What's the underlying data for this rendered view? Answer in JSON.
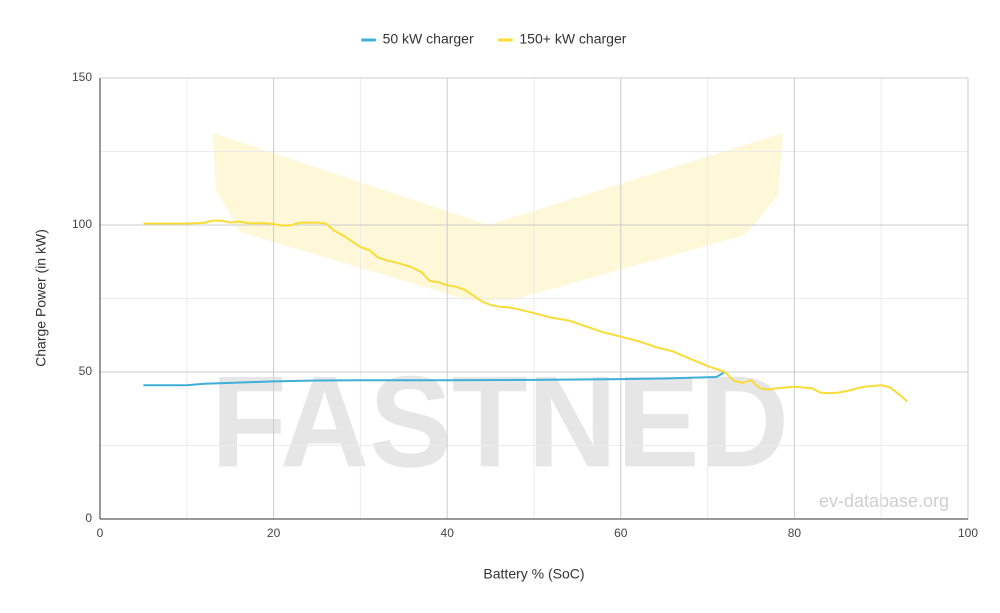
{
  "chart_data": {
    "type": "line",
    "x_label": "Battery % (SoC)",
    "y_label": "Charge Power (in kW)",
    "watermark": "FASTNED",
    "credit": "ev-database.org",
    "xlim": [
      0,
      100
    ],
    "xticks": [
      0,
      20,
      40,
      60,
      80,
      100
    ],
    "ylim": [
      0,
      150
    ],
    "yticks": [
      0,
      50,
      100,
      150
    ],
    "grid": true,
    "minor_grid": true,
    "legend": "top",
    "series": [
      {
        "name": "50 kW charger",
        "color": "#3dafd8",
        "x": [
          5,
          10,
          12,
          15,
          20,
          25,
          30,
          40,
          50,
          60,
          65,
          70,
          71,
          72
        ],
        "values": [
          45.5,
          45.5,
          46,
          46.3,
          46.8,
          47.1,
          47.2,
          47.2,
          47.3,
          47.6,
          47.8,
          48.2,
          48.3,
          50
        ]
      },
      {
        "name": "150+ kW charger",
        "color": "#f9dc37",
        "x": [
          5,
          10,
          12,
          13,
          14,
          15,
          16,
          17,
          19,
          20,
          21,
          22,
          23,
          25,
          26,
          27,
          28,
          29,
          30,
          31,
          32,
          33,
          34,
          35,
          36,
          37,
          38,
          39,
          40,
          41,
          42,
          43,
          44,
          45,
          46,
          47,
          48,
          50,
          52,
          54,
          56,
          58,
          60,
          62,
          64,
          66,
          68,
          70,
          72,
          73,
          74,
          75,
          76,
          77,
          78,
          80,
          82,
          83,
          84,
          85,
          86,
          88,
          90,
          91,
          92,
          93
        ],
        "values": [
          100.5,
          100.5,
          100.7,
          101.5,
          101.5,
          100.8,
          101.2,
          100.6,
          100.6,
          100.3,
          99.8,
          99.9,
          100.8,
          100.8,
          100.5,
          98,
          96.5,
          94.5,
          92.5,
          91.5,
          89,
          88,
          87.3,
          86.5,
          85.5,
          84,
          81,
          80.5,
          79.5,
          79,
          78,
          76,
          74,
          72.8,
          72.2,
          72,
          71.5,
          70,
          68.5,
          67.5,
          65.5,
          63.5,
          62,
          60.5,
          58.5,
          57,
          54.5,
          52,
          50,
          47,
          46.3,
          47.2,
          44.5,
          44,
          44.5,
          45,
          44.5,
          43,
          42.8,
          43,
          43.5,
          45,
          45.5,
          44.8,
          42.5,
          40
        ]
      }
    ]
  }
}
